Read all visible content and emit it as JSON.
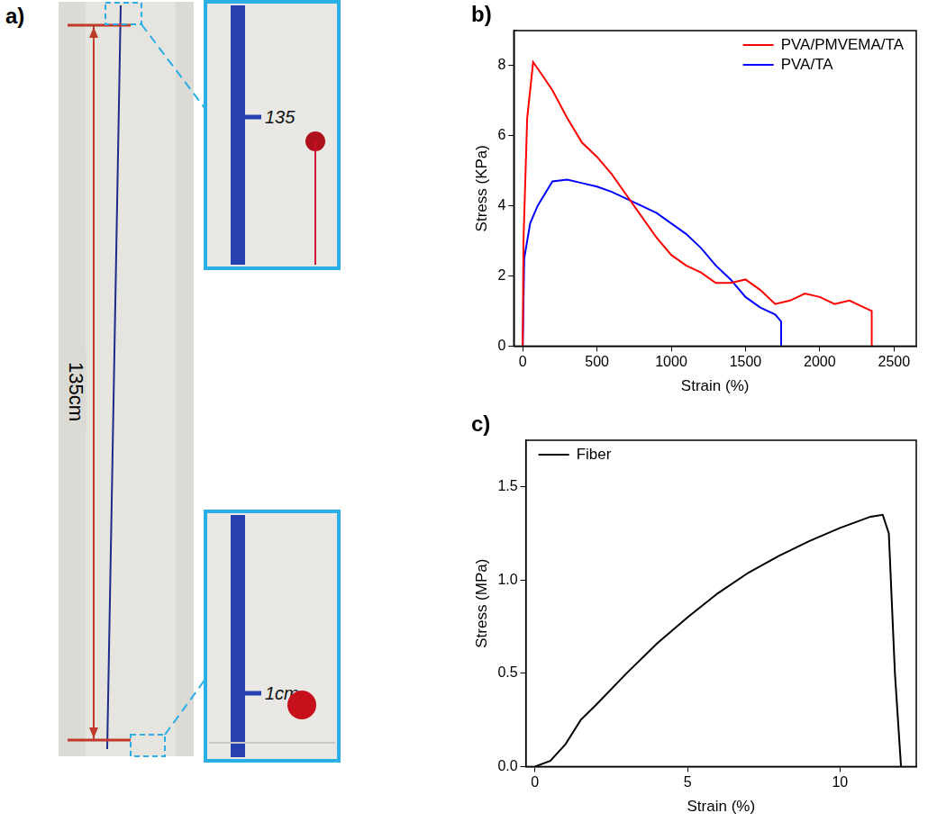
{
  "photo": {
    "panel": "a)",
    "length_label": "135cm",
    "insets": [
      "135",
      "1cm"
    ]
  },
  "chart_data": [
    {
      "panel": "b)",
      "type": "line",
      "xlabel": "Strain (%)",
      "ylabel": "Stress (KPa)",
      "xlim": [
        -60,
        2650
      ],
      "xticks": [
        0,
        500,
        1000,
        1500,
        2000,
        2500
      ],
      "ylim": [
        0,
        9
      ],
      "yticks": [
        0,
        2,
        4,
        6,
        8
      ],
      "grid": false,
      "legend": "upper right",
      "series": [
        {
          "name": "PVA/PMVEMA/TA",
          "color": "#ff0000",
          "x": [
            0,
            5,
            30,
            70,
            120,
            200,
            300,
            400,
            500,
            600,
            700,
            800,
            900,
            1000,
            1100,
            1200,
            1300,
            1400,
            1500,
            1600,
            1700,
            1800,
            1900,
            2000,
            2100,
            2200,
            2300,
            2350,
            2350
          ],
          "values": [
            0,
            3.0,
            6.5,
            8.1,
            7.8,
            7.3,
            6.5,
            5.8,
            5.4,
            4.9,
            4.3,
            3.7,
            3.1,
            2.6,
            2.3,
            2.1,
            1.8,
            1.8,
            1.9,
            1.6,
            1.2,
            1.3,
            1.5,
            1.4,
            1.2,
            1.3,
            1.1,
            1.0,
            0
          ]
        },
        {
          "name": "PVA/TA",
          "color": "#0000ff",
          "x": [
            0,
            10,
            50,
            100,
            200,
            300,
            400,
            500,
            600,
            700,
            800,
            900,
            1000,
            1100,
            1200,
            1300,
            1400,
            1500,
            1600,
            1700,
            1740,
            1740
          ],
          "values": [
            0,
            2.5,
            3.5,
            4.0,
            4.7,
            4.75,
            4.65,
            4.55,
            4.4,
            4.2,
            4.0,
            3.8,
            3.5,
            3.2,
            2.8,
            2.3,
            1.9,
            1.4,
            1.1,
            0.9,
            0.7,
            0
          ]
        }
      ]
    },
    {
      "panel": "c)",
      "type": "line",
      "xlabel": "Strain (%)",
      "ylabel": "Stress (MPa)",
      "xlim": [
        -0.3,
        12.5
      ],
      "xticks": [
        0,
        5,
        10
      ],
      "ylim": [
        0,
        1.75
      ],
      "yticks": [
        {
          "value": 0,
          "label": "0.0"
        },
        {
          "value": 0.5,
          "label": "0.5"
        },
        {
          "value": 1,
          "label": "1.0"
        },
        {
          "value": 1.5,
          "label": "1.5"
        }
      ],
      "grid": false,
      "legend": "upper left",
      "series": [
        {
          "name": "Fiber",
          "color": "#000000",
          "x": [
            0,
            0.5,
            1,
            1.5,
            2,
            3,
            4,
            5,
            6,
            7,
            8,
            9,
            10,
            11,
            11.4,
            11.6,
            11.8,
            12.0
          ],
          "values": [
            0,
            0.03,
            0.12,
            0.25,
            0.33,
            0.5,
            0.66,
            0.8,
            0.93,
            1.04,
            1.13,
            1.21,
            1.28,
            1.34,
            1.35,
            1.25,
            0.5,
            0
          ]
        }
      ]
    }
  ]
}
